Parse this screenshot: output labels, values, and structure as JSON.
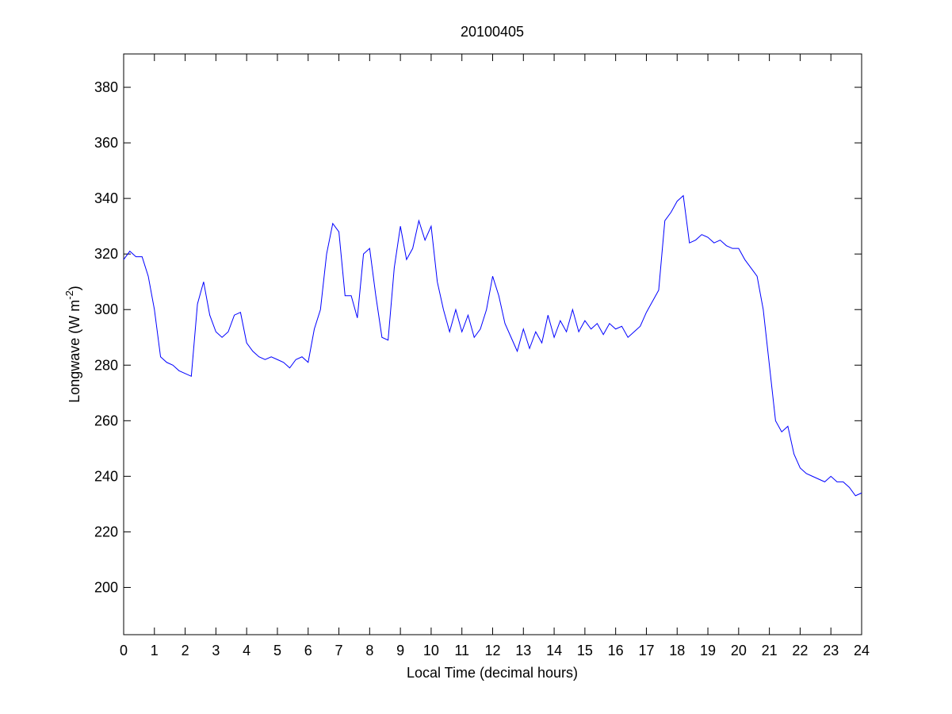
{
  "chart_data": {
    "type": "line",
    "title": "20100405",
    "x_label": "Local Time (decimal hours)",
    "y_label": [
      "Longwave (W m",
      "-2",
      ")"
    ],
    "xlim": [
      0,
      24
    ],
    "ylim": [
      183,
      392
    ],
    "xticks": [
      0,
      1,
      2,
      3,
      4,
      5,
      6,
      7,
      8,
      9,
      10,
      11,
      12,
      13,
      14,
      15,
      16,
      17,
      18,
      19,
      20,
      21,
      22,
      23,
      24
    ],
    "yticks": [
      200,
      220,
      240,
      260,
      280,
      300,
      320,
      340,
      360,
      380
    ],
    "grid": false,
    "series": [
      {
        "color": "#0000ff",
        "x": [
          0,
          0.2,
          0.4,
          0.6,
          0.8,
          1,
          1.2,
          1.4,
          1.6,
          1.8,
          2,
          2.2,
          2.4,
          2.6,
          2.8,
          3,
          3.2,
          3.4,
          3.6,
          3.8,
          4,
          4.2,
          4.4,
          4.6,
          4.8,
          5,
          5.2,
          5.4,
          5.6,
          5.8,
          6,
          6.2,
          6.4,
          6.6,
          6.8,
          7,
          7.2,
          7.4,
          7.6,
          7.8,
          8,
          8.2,
          8.4,
          8.6,
          8.8,
          9,
          9.2,
          9.4,
          9.6,
          9.8,
          10,
          10.2,
          10.4,
          10.6,
          10.8,
          11,
          11.2,
          11.4,
          11.6,
          11.8,
          12,
          12.2,
          12.4,
          12.6,
          12.8,
          13,
          13.2,
          13.4,
          13.6,
          13.8,
          14,
          14.2,
          14.4,
          14.6,
          14.8,
          15,
          15.2,
          15.4,
          15.6,
          15.8,
          16,
          16.2,
          16.4,
          16.6,
          16.8,
          17,
          17.2,
          17.4,
          17.6,
          17.8,
          18,
          18.2,
          18.4,
          18.6,
          18.8,
          19,
          19.2,
          19.4,
          19.6,
          19.8,
          20,
          20.2,
          20.4,
          20.6,
          20.8,
          21,
          21.2,
          21.4,
          21.6,
          21.8,
          22,
          22.2,
          22.4,
          22.6,
          22.8,
          23,
          23.2,
          23.4,
          23.6,
          23.8,
          24
        ],
        "values": [
          318,
          321,
          319,
          319,
          312,
          300,
          283,
          281,
          280,
          278,
          277,
          276,
          302,
          310,
          298,
          292,
          290,
          292,
          298,
          299,
          288,
          285,
          283,
          282,
          283,
          282,
          281,
          279,
          282,
          283,
          281,
          293,
          300,
          320,
          331,
          328,
          305,
          305,
          297,
          320,
          322,
          305,
          290,
          289,
          315,
          330,
          318,
          322,
          332,
          325,
          330,
          310,
          300,
          292,
          300,
          292,
          298,
          290,
          293,
          300,
          312,
          305,
          295,
          290,
          285,
          293,
          286,
          292,
          288,
          298,
          290,
          296,
          292,
          300,
          292,
          296,
          293,
          295,
          291,
          295,
          293,
          294,
          290,
          292,
          294,
          299,
          303,
          307,
          332,
          335,
          339,
          341,
          324,
          325,
          327,
          326,
          324,
          325,
          323,
          322,
          322,
          318,
          315,
          312,
          300,
          280,
          260,
          256,
          258,
          248,
          243,
          241,
          240,
          239,
          238,
          240,
          238,
          238,
          236,
          233,
          234
        ]
      }
    ]
  }
}
